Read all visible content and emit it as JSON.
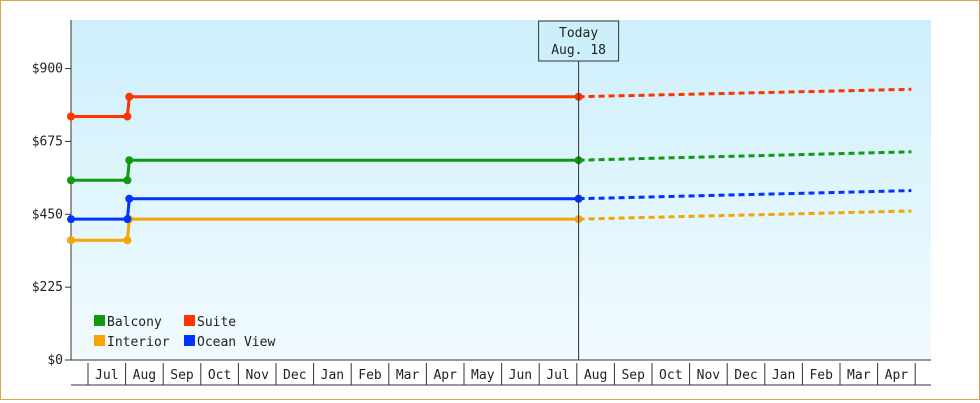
{
  "chart_data": {
    "type": "line",
    "title": "",
    "xlabel": "",
    "ylabel": "",
    "ylim": [
      0,
      1050
    ],
    "y_ticks": [
      {
        "value": 0,
        "label": "$0"
      },
      {
        "value": 225,
        "label": "$225"
      },
      {
        "value": 450,
        "label": "$450"
      },
      {
        "value": 675,
        "label": "$675"
      },
      {
        "value": 900,
        "label": "$900"
      }
    ],
    "month_labels": [
      "Jul",
      "Aug",
      "Sep",
      "Oct",
      "Nov",
      "Dec",
      "Jan",
      "Feb",
      "Mar",
      "Apr",
      "May",
      "Jun",
      "Jul",
      "Aug",
      "Sep",
      "Oct",
      "Nov",
      "Dec",
      "Jan",
      "Feb",
      "Mar",
      "Apr"
    ],
    "today_marker": {
      "line1": "Today",
      "line2": "Aug. 18",
      "month_index": 13.5
    },
    "grid": false,
    "legend_position": "bottom-left",
    "series": [
      {
        "name": "Balcony",
        "color": "#119911",
        "history": [
          [
            0,
            555
          ],
          [
            1.5,
            555
          ],
          [
            1.55,
            617
          ],
          [
            13.5,
            617
          ]
        ],
        "forecast": [
          [
            13.5,
            617
          ],
          [
            22.35,
            643
          ]
        ]
      },
      {
        "name": "Suite",
        "color": "#ff3300",
        "history": [
          [
            0,
            752
          ],
          [
            1.5,
            752
          ],
          [
            1.55,
            813
          ],
          [
            13.5,
            813
          ]
        ],
        "forecast": [
          [
            13.5,
            813
          ],
          [
            22.35,
            836
          ]
        ]
      },
      {
        "name": "Interior",
        "color": "#f5a400",
        "history": [
          [
            0,
            370
          ],
          [
            1.5,
            370
          ],
          [
            1.55,
            435
          ],
          [
            13.5,
            435
          ]
        ],
        "forecast": [
          [
            13.5,
            435
          ],
          [
            22.35,
            460
          ]
        ]
      },
      {
        "name": "Ocean View",
        "color": "#0033ff",
        "history": [
          [
            0,
            435
          ],
          [
            1.5,
            435
          ],
          [
            1.55,
            498
          ],
          [
            13.5,
            498
          ]
        ],
        "forecast": [
          [
            13.5,
            498
          ],
          [
            22.35,
            523
          ]
        ]
      }
    ]
  }
}
